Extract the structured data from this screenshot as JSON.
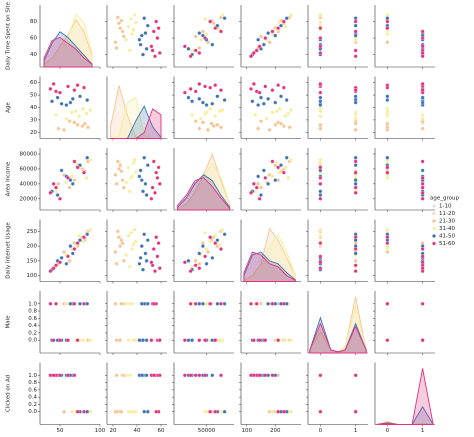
{
  "chart_data": {
    "type": "pairplot",
    "variables": [
      {
        "label": "Daily Time Spent on Site",
        "lim": [
          25,
          100
        ],
        "xticks": [
          50,
          100
        ],
        "yticks": [
          40,
          60,
          80
        ],
        "kde_x": [
          30,
          40,
          50,
          60,
          70,
          80,
          90
        ]
      },
      {
        "label": "Age",
        "lim": [
          15,
          65
        ],
        "xticks": [
          20,
          40,
          60
        ],
        "yticks": [
          20,
          30,
          40,
          50,
          60
        ],
        "kde_x": [
          18,
          25,
          32,
          39,
          46,
          53,
          60
        ]
      },
      {
        "label": "Area Income",
        "lim": [
          5000,
          88000
        ],
        "xticks": [
          50000
        ],
        "yticks": [
          20000,
          40000,
          60000,
          80000
        ],
        "kde_x": [
          10000,
          22000,
          34000,
          46000,
          58000,
          70000,
          82000
        ]
      },
      {
        "label": "Daily Internet Usage",
        "lim": [
          80,
          290
        ],
        "xticks": [
          100,
          200
        ],
        "yticks": [
          100,
          150,
          200,
          250
        ],
        "kde_x": [
          90,
          120,
          150,
          180,
          210,
          240,
          270
        ]
      },
      {
        "label": "Male",
        "lim": [
          -0.35,
          1.35
        ],
        "xticks": [
          0,
          1
        ],
        "yticks": [
          {
            "value": 0,
            "label": "0.0"
          },
          {
            "value": 0.2,
            "label": "0.2"
          },
          {
            "value": 0.4,
            "label": "0.4"
          },
          {
            "value": 0.6,
            "label": "0.6"
          },
          {
            "value": 0.8,
            "label": "0.8"
          },
          {
            "value": 1,
            "label": "1.0"
          }
        ],
        "kde_x": [
          -0.3,
          0,
          0.3,
          0.5,
          0.7,
          1,
          1.3
        ]
      },
      {
        "label": "Clicked on Ad",
        "lim": [
          -0.35,
          1.35
        ],
        "xticks": [
          0,
          1
        ],
        "yticks": [
          {
            "value": 0,
            "label": "0.0"
          },
          {
            "value": 0.2,
            "label": "0.2"
          },
          {
            "value": 0.4,
            "label": "0.4"
          },
          {
            "value": 0.6,
            "label": "0.6"
          },
          {
            "value": 0.8,
            "label": "0.8"
          },
          {
            "value": 1,
            "label": "1.0"
          }
        ],
        "kde_x": [
          -0.3,
          0,
          0.3,
          0.5,
          0.7,
          1,
          1.3
        ]
      }
    ],
    "kde_ylim": [
      0,
      1
    ],
    "legend_title": "age_group",
    "legend": "right",
    "series": [
      {
        "name": "1-10",
        "color": "#e9dcf0",
        "values": [],
        "kde": []
      },
      {
        "name": "11-20",
        "color": "#f9d9b8",
        "values": [],
        "kde": []
      },
      {
        "name": "21-30",
        "color": "#f6c393",
        "values": [
          [
            55,
            22,
            52000,
            180,
            1,
            0
          ],
          [
            78,
            25,
            60000,
            230,
            0,
            0
          ],
          [
            68,
            28,
            45000,
            210,
            1,
            1
          ],
          [
            85,
            24,
            70000,
            250,
            0,
            0
          ],
          [
            62,
            29,
            35000,
            150,
            1,
            1
          ],
          [
            72,
            26,
            65000,
            200,
            0,
            0
          ],
          [
            48,
            23,
            40000,
            140,
            0,
            1
          ],
          [
            81,
            27,
            57000,
            220,
            1,
            0
          ]
        ],
        "kde": [
          [
            0.05,
            0.15,
            0.35,
            0.55,
            0.8,
            0.6,
            0.2
          ],
          [
            0.2,
            0.9,
            0.4,
            0.02,
            0,
            0,
            0
          ],
          [
            0.02,
            0.1,
            0.3,
            0.6,
            0.95,
            0.5,
            0.1
          ],
          [
            0.02,
            0.1,
            0.3,
            0.9,
            0.7,
            0.4,
            0.1
          ],
          [
            0.05,
            0.35,
            0.05,
            0.02,
            0.1,
            0.95,
            0.05
          ],
          [
            0,
            0.05,
            0,
            0,
            0,
            0.02,
            0
          ]
        ]
      },
      {
        "name": "31-40",
        "color": "#f5ee9e",
        "values": [
          [
            74,
            33,
            62000,
            235,
            0,
            0
          ],
          [
            65,
            36,
            50000,
            190,
            1,
            0
          ],
          [
            88,
            38,
            72000,
            255,
            0,
            0
          ],
          [
            45,
            34,
            30000,
            130,
            1,
            1
          ],
          [
            79,
            39,
            55000,
            215,
            0,
            0
          ],
          [
            58,
            31,
            42000,
            170,
            1,
            1
          ],
          [
            70,
            37,
            68000,
            205,
            0,
            0
          ],
          [
            83,
            35,
            48000,
            245,
            1,
            0
          ]
        ],
        "kde": [
          [
            0.03,
            0.1,
            0.3,
            0.5,
            0.9,
            0.75,
            0.25
          ],
          [
            0,
            0.05,
            0.6,
            0.7,
            0.05,
            0,
            0
          ],
          [
            0.02,
            0.08,
            0.25,
            0.55,
            0.8,
            0.55,
            0.1
          ],
          [
            0.02,
            0.08,
            0.25,
            0.6,
            0.8,
            0.5,
            0.1
          ],
          [
            0.05,
            0.4,
            0.05,
            0.02,
            0.1,
            0.8,
            0.05
          ],
          [
            0,
            0.06,
            0,
            0,
            0,
            0.02,
            0
          ]
        ]
      },
      {
        "name": "41-50",
        "color": "#3d72b4",
        "values": [
          [
            52,
            43,
            58000,
            160,
            0,
            1
          ],
          [
            66,
            47,
            40000,
            175,
            1,
            1
          ],
          [
            40,
            45,
            30000,
            120,
            0,
            1
          ],
          [
            75,
            49,
            65000,
            220,
            1,
            0
          ],
          [
            58,
            42,
            50000,
            140,
            0,
            1
          ],
          [
            84,
            46,
            75000,
            240,
            1,
            0
          ],
          [
            47,
            48,
            25000,
            150,
            0,
            1
          ],
          [
            63,
            44,
            45000,
            200,
            1,
            1
          ]
        ],
        "kde": [
          [
            0.1,
            0.4,
            0.6,
            0.5,
            0.35,
            0.2,
            0.05
          ],
          [
            0,
            0,
            0,
            0.3,
            0.55,
            0.2,
            0.02
          ],
          [
            0.05,
            0.2,
            0.45,
            0.6,
            0.5,
            0.25,
            0.05
          ],
          [
            0.1,
            0.45,
            0.5,
            0.35,
            0.3,
            0.15,
            0.03
          ],
          [
            0.05,
            0.6,
            0.05,
            0.02,
            0.05,
            0.5,
            0.05
          ],
          [
            0,
            0.03,
            0,
            0,
            0,
            0.3,
            0
          ]
        ]
      },
      {
        "name": "51-60",
        "color": "#e3327f",
        "values": [
          [
            45,
            53,
            35000,
            135,
            1,
            1
          ],
          [
            60,
            57,
            48000,
            165,
            0,
            1
          ],
          [
            38,
            55,
            28000,
            115,
            1,
            1
          ],
          [
            72,
            58,
            62000,
            210,
            0,
            0
          ],
          [
            50,
            52,
            20000,
            145,
            0,
            1
          ],
          [
            80,
            56,
            55000,
            230,
            1,
            0
          ],
          [
            42,
            59,
            40000,
            125,
            0,
            1
          ],
          [
            68,
            54,
            70000,
            190,
            1,
            1
          ]
        ],
        "kde": [
          [
            0.15,
            0.45,
            0.5,
            0.4,
            0.3,
            0.15,
            0.05
          ],
          [
            0,
            0,
            0,
            0,
            0.1,
            0.5,
            0.4
          ],
          [
            0.08,
            0.25,
            0.5,
            0.55,
            0.4,
            0.2,
            0.03
          ],
          [
            0.15,
            0.5,
            0.45,
            0.3,
            0.25,
            0.1,
            0.02
          ],
          [
            0.05,
            0.5,
            0.05,
            0.02,
            0.05,
            0.45,
            0.05
          ],
          [
            0,
            0.02,
            0,
            0,
            0,
            0.95,
            0
          ]
        ]
      }
    ]
  }
}
